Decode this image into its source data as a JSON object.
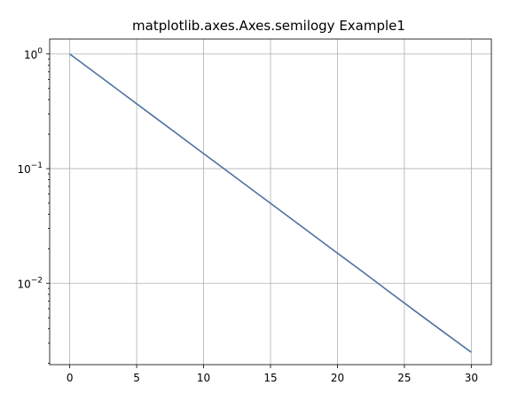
{
  "chart_data": {
    "type": "line",
    "title": "matplotlib.axes.Axes.semilogy Example1",
    "xlabel": "",
    "ylabel": "",
    "xscale": "linear",
    "yscale": "log",
    "xlim": [
      -1.5,
      31.5
    ],
    "ylim": [
      0.00195,
      1.35
    ],
    "x_ticks": [
      0,
      5,
      10,
      15,
      20,
      25,
      30
    ],
    "y_ticks": [
      {
        "value": 1,
        "base": "10",
        "exp": "0"
      },
      {
        "value": 0.1,
        "base": "10",
        "exp": "−1"
      },
      {
        "value": 0.01,
        "base": "10",
        "exp": "−2"
      }
    ],
    "grid": true,
    "legend": false,
    "series": [
      {
        "color": "#4c72a0",
        "x": [
          0,
          2,
          4,
          6,
          8,
          10,
          12,
          14,
          16,
          18,
          20,
          22,
          24,
          26,
          28,
          30
        ],
        "y": [
          1.0,
          0.6703,
          0.4493,
          0.3012,
          0.2019,
          0.1353,
          0.0907,
          0.0608,
          0.0408,
          0.0273,
          0.0183,
          0.0123,
          0.0082,
          0.0055,
          0.0037,
          0.0025
        ]
      }
    ]
  }
}
